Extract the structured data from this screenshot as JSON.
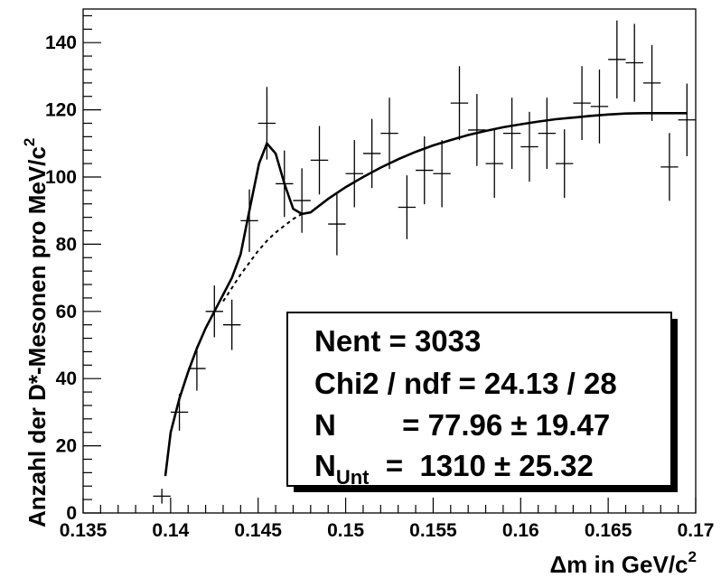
{
  "chart_data": {
    "type": "scatter",
    "xlabel": "Δm in GeV/c",
    "xlabel_sup": "2",
    "ylabel": "Anzahl der  D*-Mesonen pro MeV/c",
    "ylabel_sup": "2",
    "xlim": [
      0.135,
      0.17
    ],
    "ylim": [
      0,
      150
    ],
    "x_ticks": [
      {
        "value": 0.135,
        "label": "0.135"
      },
      {
        "value": 0.14,
        "label": "0.14"
      },
      {
        "value": 0.145,
        "label": "0.145"
      },
      {
        "value": 0.15,
        "label": "0.15"
      },
      {
        "value": 0.155,
        "label": "0.155"
      },
      {
        "value": 0.16,
        "label": "0.16"
      },
      {
        "value": 0.165,
        "label": "0.165"
      },
      {
        "value": 0.17,
        "label": "0.17"
      }
    ],
    "y_ticks": [
      {
        "value": 0,
        "label": "0"
      },
      {
        "value": 20,
        "label": "20"
      },
      {
        "value": 40,
        "label": "40"
      },
      {
        "value": 60,
        "label": "60"
      },
      {
        "value": 80,
        "label": "80"
      },
      {
        "value": 100,
        "label": "100"
      },
      {
        "value": 120,
        "label": "120"
      },
      {
        "value": 140,
        "label": "140"
      }
    ],
    "bin_half_width": 0.0005,
    "points": [
      {
        "x": 0.1395,
        "y": 5,
        "err": 2.2
      },
      {
        "x": 0.1405,
        "y": 30,
        "err": 5.5
      },
      {
        "x": 0.1415,
        "y": 43,
        "err": 6.6
      },
      {
        "x": 0.1425,
        "y": 60,
        "err": 7.7
      },
      {
        "x": 0.1435,
        "y": 56,
        "err": 7.5
      },
      {
        "x": 0.1445,
        "y": 87,
        "err": 9.3
      },
      {
        "x": 0.1455,
        "y": 116,
        "err": 10.8
      },
      {
        "x": 0.1465,
        "y": 98,
        "err": 9.9
      },
      {
        "x": 0.1475,
        "y": 93,
        "err": 9.6
      },
      {
        "x": 0.1485,
        "y": 105,
        "err": 10.2
      },
      {
        "x": 0.1495,
        "y": 86,
        "err": 9.3
      },
      {
        "x": 0.1505,
        "y": 101,
        "err": 10.0
      },
      {
        "x": 0.1515,
        "y": 107,
        "err": 10.3
      },
      {
        "x": 0.1525,
        "y": 113,
        "err": 10.6
      },
      {
        "x": 0.1535,
        "y": 91,
        "err": 9.5
      },
      {
        "x": 0.1545,
        "y": 102,
        "err": 10.1
      },
      {
        "x": 0.1555,
        "y": 101,
        "err": 10.0
      },
      {
        "x": 0.1565,
        "y": 122,
        "err": 11.0
      },
      {
        "x": 0.1575,
        "y": 114,
        "err": 10.7
      },
      {
        "x": 0.1585,
        "y": 104,
        "err": 10.2
      },
      {
        "x": 0.1595,
        "y": 113,
        "err": 10.6
      },
      {
        "x": 0.1605,
        "y": 109,
        "err": 10.4
      },
      {
        "x": 0.1615,
        "y": 113,
        "err": 10.6
      },
      {
        "x": 0.1625,
        "y": 104,
        "err": 10.2
      },
      {
        "x": 0.1635,
        "y": 122,
        "err": 11.0
      },
      {
        "x": 0.1645,
        "y": 121,
        "err": 11.0
      },
      {
        "x": 0.1655,
        "y": 135,
        "err": 11.6
      },
      {
        "x": 0.1665,
        "y": 134,
        "err": 11.6
      },
      {
        "x": 0.1675,
        "y": 128,
        "err": 11.3
      },
      {
        "x": 0.1685,
        "y": 103,
        "err": 10.1
      },
      {
        "x": 0.1695,
        "y": 117,
        "err": 10.8
      }
    ],
    "fit_total": [
      [
        0.1397,
        11
      ],
      [
        0.14,
        24
      ],
      [
        0.1405,
        34
      ],
      [
        0.141,
        42
      ],
      [
        0.1415,
        49
      ],
      [
        0.142,
        55
      ],
      [
        0.1425,
        60
      ],
      [
        0.143,
        65
      ],
      [
        0.1435,
        70
      ],
      [
        0.144,
        77
      ],
      [
        0.1445,
        90
      ],
      [
        0.14505,
        104
      ],
      [
        0.1455,
        110
      ],
      [
        0.146,
        107
      ],
      [
        0.1465,
        98
      ],
      [
        0.147,
        90.5
      ],
      [
        0.1475,
        89
      ],
      [
        0.148,
        89.5
      ],
      [
        0.1485,
        91.5
      ],
      [
        0.149,
        93.5
      ],
      [
        0.15,
        97
      ],
      [
        0.151,
        100
      ],
      [
        0.152,
        102.8
      ],
      [
        0.153,
        105.3
      ],
      [
        0.154,
        107.5
      ],
      [
        0.155,
        109.4
      ],
      [
        0.156,
        111
      ],
      [
        0.157,
        112.5
      ],
      [
        0.158,
        113.7
      ],
      [
        0.159,
        114.8
      ],
      [
        0.16,
        115.7
      ],
      [
        0.161,
        116.5
      ],
      [
        0.162,
        117.2
      ],
      [
        0.163,
        117.7
      ],
      [
        0.164,
        118.2
      ],
      [
        0.165,
        118.6
      ],
      [
        0.166,
        118.9
      ],
      [
        0.167,
        119
      ],
      [
        0.168,
        119
      ],
      [
        0.1695,
        119
      ]
    ],
    "fit_background": [
      [
        0.143,
        63
      ],
      [
        0.1435,
        67
      ],
      [
        0.144,
        71
      ],
      [
        0.1445,
        74.5
      ],
      [
        0.145,
        78
      ],
      [
        0.1455,
        81
      ],
      [
        0.146,
        83.5
      ],
      [
        0.1465,
        85.5
      ],
      [
        0.147,
        87.5
      ],
      [
        0.1475,
        89
      ],
      [
        0.148,
        89.5
      ]
    ],
    "stats_box": {
      "line1": "Nent = 3033",
      "line2": "Chi2 / ndf = 24.13 / 28",
      "line3": "N        = 77.96 ± 19.47",
      "line4_main": "N",
      "line4_sub": "Unt",
      "line4_rest": "  =  1310 ± 25.32"
    }
  }
}
